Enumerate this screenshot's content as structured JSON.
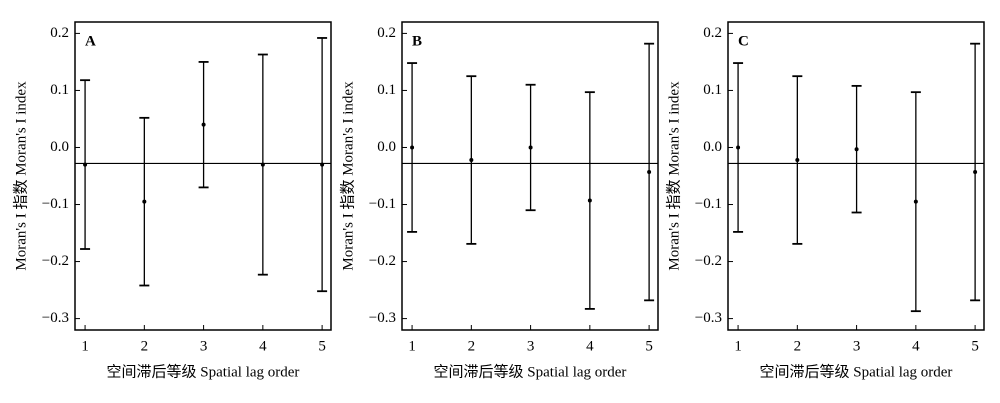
{
  "chart_data": [
    {
      "type": "errorbar",
      "panel_label": "A",
      "xlabel": "空间滞后等级 Spatial lag order",
      "ylabel": "Moran's I 指数  Moran's I index",
      "x": [
        1,
        2,
        3,
        4,
        5
      ],
      "values": [
        -0.03,
        -0.095,
        0.04,
        -0.03,
        -0.03
      ],
      "errors": [
        0.148,
        0.147,
        0.11,
        0.193,
        0.222
      ],
      "reference_y": -0.028,
      "color": "#000000",
      "xlim": [
        0.83,
        5.15
      ],
      "xticks": [
        1,
        2,
        3,
        4,
        5
      ],
      "ylim": [
        -0.32,
        0.22
      ],
      "yticks": [
        {
          "value": -0.3,
          "label": "−0.3"
        },
        {
          "value": -0.2,
          "label": "−0.2"
        },
        {
          "value": -0.1,
          "label": "−0.1"
        },
        {
          "value": 0,
          "label": "0.0"
        },
        0.1,
        0.2
      ]
    },
    {
      "type": "errorbar",
      "panel_label": "B",
      "xlabel": "空间滞后等级 Spatial lag order",
      "ylabel": "Moran's I 指数  Moran's I index",
      "x": [
        1,
        2,
        3,
        4,
        5
      ],
      "values": [
        0.0,
        -0.022,
        0.0,
        -0.093,
        -0.043
      ],
      "errors": [
        0.148,
        0.147,
        0.11,
        0.19,
        0.225
      ],
      "reference_y": -0.028,
      "color": "#000000",
      "xlim": [
        0.83,
        5.15
      ],
      "xticks": [
        1,
        2,
        3,
        4,
        5
      ],
      "ylim": [
        -0.32,
        0.22
      ],
      "yticks": [
        {
          "value": -0.3,
          "label": "−0.3"
        },
        {
          "value": -0.2,
          "label": "−0.2"
        },
        {
          "value": -0.1,
          "label": "−0.1"
        },
        {
          "value": 0,
          "label": "0.0"
        },
        0.1,
        0.2
      ]
    },
    {
      "type": "errorbar",
      "panel_label": "C",
      "xlabel": "空间滞后等级 Spatial lag order",
      "ylabel": "Moran's I 指数  Moran's I index",
      "x": [
        1,
        2,
        3,
        4,
        5
      ],
      "values": [
        0.0,
        -0.022,
        -0.003,
        -0.095,
        -0.043
      ],
      "errors": [
        0.148,
        0.147,
        0.111,
        0.192,
        0.225
      ],
      "reference_y": -0.028,
      "color": "#000000",
      "xlim": [
        0.83,
        5.15
      ],
      "xticks": [
        1,
        2,
        3,
        4,
        5
      ],
      "ylim": [
        -0.32,
        0.22
      ],
      "yticks": [
        {
          "value": -0.3,
          "label": "−0.3"
        },
        {
          "value": -0.2,
          "label": "−0.2"
        },
        {
          "value": -0.1,
          "label": "−0.1"
        },
        {
          "value": 0,
          "label": "0.0"
        },
        0.1,
        0.2
      ]
    }
  ]
}
